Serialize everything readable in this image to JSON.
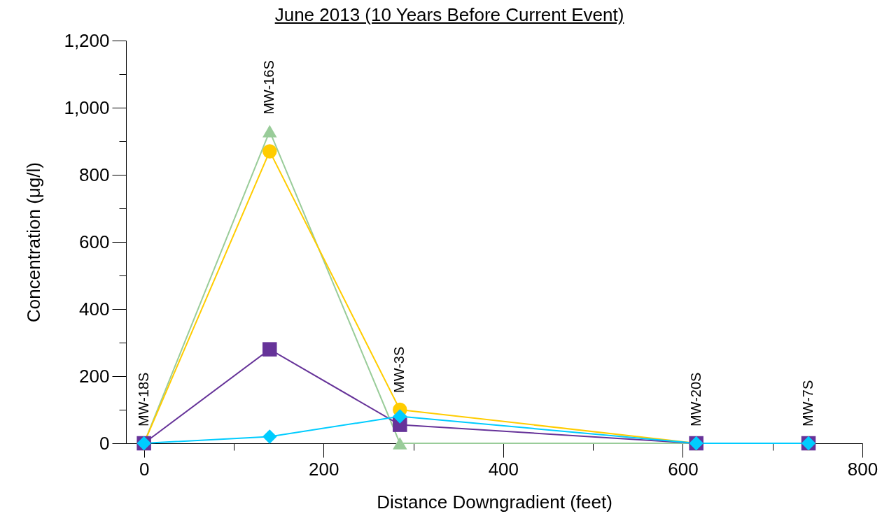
{
  "chart_data": {
    "type": "line",
    "title": "June 2013 (10 Years Before Current Event)",
    "xlabel": "Distance Downgradient (feet)",
    "ylabel": "Concentration (μg/l)",
    "x": [
      0,
      140,
      285,
      615,
      740
    ],
    "series": [
      {
        "color": "#99cc99",
        "marker": "triangle",
        "values": [
          0,
          930,
          0,
          0,
          0
        ]
      },
      {
        "color": "#ffcc00",
        "marker": "circle",
        "values": [
          0,
          870,
          100,
          0,
          0
        ]
      },
      {
        "color": "#663399",
        "marker": "square",
        "values": [
          0,
          280,
          55,
          0,
          0
        ]
      },
      {
        "color": "#00ccff",
        "marker": "diamond",
        "values": [
          0,
          20,
          80,
          0,
          0
        ]
      }
    ],
    "xlim": [
      -20,
      800
    ],
    "xticks": [
      0,
      {
        "value": 100,
        "label": null
      },
      200,
      {
        "value": 300,
        "label": null
      },
      400,
      {
        "value": 500,
        "label": null
      },
      600,
      {
        "value": 700,
        "label": null
      },
      800
    ],
    "ylim": [
      0,
      1200
    ],
    "yticks": [
      0,
      {
        "value": 100,
        "label": null
      },
      200,
      {
        "value": 300,
        "label": null
      },
      400,
      {
        "value": 500,
        "label": null
      },
      600,
      {
        "value": 700,
        "label": null
      },
      800,
      {
        "value": 900,
        "label": null
      },
      {
        "value": 1000,
        "label": "1,000"
      },
      {
        "value": 1100,
        "label": null
      },
      {
        "value": 1200,
        "label": "1,200"
      }
    ],
    "annotations": [
      {
        "text": "MW-18S",
        "x": 0,
        "y": 0
      },
      {
        "text": "MW-16S",
        "x": 140,
        "y": 930
      },
      {
        "text": "MW-3S",
        "x": 285,
        "y": 100
      },
      {
        "text": "MW-20S",
        "x": 615,
        "y": 0
      },
      {
        "text": "MW-7S",
        "x": 740,
        "y": 0
      }
    ]
  }
}
